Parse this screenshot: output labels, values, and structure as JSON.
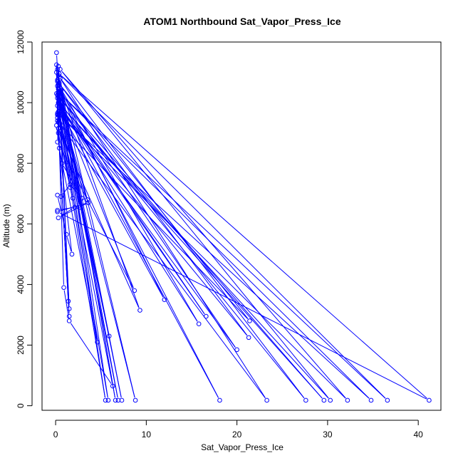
{
  "chart_data": {
    "type": "line",
    "title": "ATOM1 Northbound Sat_Vapor_Press_Ice",
    "xlabel": "Sat_Vapor_Press_Ice",
    "ylabel": "Altitude (m)",
    "xlim": [
      -1.5,
      42.5
    ],
    "ylim": [
      -150,
      12000
    ],
    "xticks": [
      0,
      10,
      20,
      30,
      40
    ],
    "yticks": [
      0,
      2000,
      4000,
      6000,
      8000,
      10000,
      12000
    ],
    "grid": false,
    "line_color": "#0000ff",
    "marker": "open-circle",
    "series": [
      {
        "x": [
          0.1,
          0.2,
          0.3,
          0.4,
          0.2,
          1.3,
          0.7,
          2.9,
          1.6,
          0.6,
          0.2,
          1.2,
          1.8,
          0.1,
          0.3,
          5.5,
          0.2,
          0.9,
          1.5,
          6.3,
          0.4,
          0.5,
          6.6,
          0.1,
          0.2,
          0.3,
          6.9,
          0.4,
          7.3,
          0.5,
          1.9,
          0.6,
          8.8,
          0.1,
          0.3,
          9.3,
          0.2,
          0.5,
          2.7,
          0.3,
          5.8,
          0.6,
          0.2,
          8.7,
          0.7,
          0.3,
          4.6,
          0.4,
          0.1,
          3.5,
          0.2,
          1.6,
          0.3,
          1.5,
          0.2,
          1.4,
          0.3,
          1.5,
          0.4,
          5.9,
          0.5,
          12.0,
          0.3,
          15.8,
          0.4,
          16.6,
          0.2,
          18.1,
          0.3,
          20.0,
          0.4,
          21.3,
          0.2,
          21.4,
          0.3,
          23.3,
          0.4,
          27.6,
          0.2,
          29.6,
          0.3,
          30.3,
          0.5,
          32.2,
          0.2,
          34.8,
          0.3,
          36.6,
          0.4,
          41.2,
          0.2,
          3.6,
          0.3,
          2.1,
          0.2
        ],
        "y": [
          11650,
          11100,
          10500,
          10100,
          9900,
          8050,
          8000,
          6850,
          7300,
          6900,
          6950,
          5650,
          5000,
          9250,
          9600,
          180,
          10550,
          3900,
          2800,
          650,
          9700,
          10800,
          180,
          11250,
          9500,
          10300,
          180,
          10650,
          180,
          10200,
          6850,
          9900,
          180,
          11000,
          9150,
          3150,
          10750,
          9300,
          6550,
          9700,
          180,
          10400,
          8700,
          3800,
          9800,
          10900,
          2100,
          8500,
          10300,
          6800,
          9400,
          7200,
          9000,
          2950,
          9600,
          3450,
          11200,
          3200,
          10050,
          2300,
          9750,
          3500,
          10600,
          2700,
          9950,
          2950,
          10150,
          180,
          10450,
          1850,
          9850,
          2250,
          10700,
          2800,
          9350,
          180,
          10850,
          180,
          10250,
          180,
          10000,
          180,
          11100,
          180,
          9650,
          180,
          10350,
          180,
          10950,
          180,
          6400,
          6700,
          6200,
          6550,
          6450
        ]
      }
    ]
  }
}
